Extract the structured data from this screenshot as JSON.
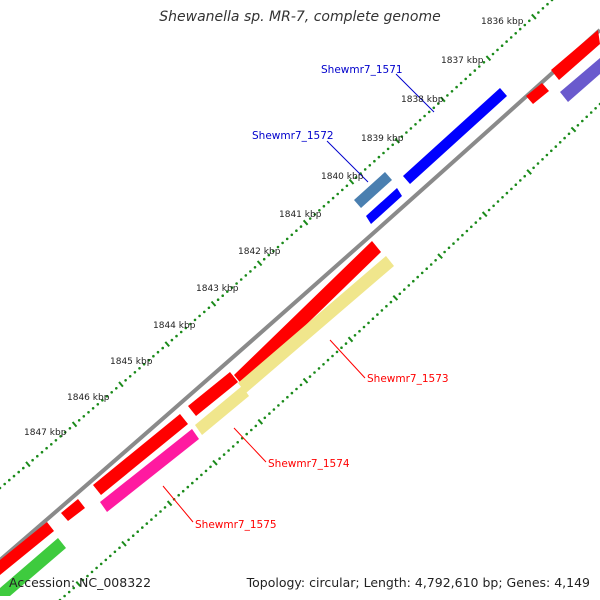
{
  "title": "Shewanella sp. MR-7, complete genome",
  "footer": {
    "accession": "Accession: NC_008322",
    "summary": "Topology: circular; Length: 4,792,610 bp; Genes: 4,149"
  },
  "colors": {
    "backbone": "#8a8a8a",
    "tick": "#1a8a1a",
    "tick_label": "#222222",
    "forward_gene": "#0000ff",
    "forward_gene_alt": "#4a7fb0",
    "reverse_gene": "#ff0000",
    "reverse_gene_alt_magenta": "#ff1aa0",
    "reverse_gene_alt_khaki": "#f0e68c",
    "reverse_gene_alt_green": "#3ecb3e",
    "reverse_gene_alt_slate": "#6a5acd",
    "forward_label": "#0000cc",
    "reverse_label": "#ff0000"
  },
  "ticks": [
    "1836 kbp",
    "1837 kbp",
    "1838 kbp",
    "1839 kbp",
    "1840 kbp",
    "1841 kbp",
    "1842 kbp",
    "1843 kbp",
    "1844 kbp",
    "1845 kbp",
    "1846 kbp",
    "1847 kbp"
  ],
  "gene_labels": {
    "g1571": "Shewmr7_1571",
    "g1572": "Shewmr7_1572",
    "g1573": "Shewmr7_1573",
    "g1574": "Shewmr7_1574",
    "g1575": "Shewmr7_1575"
  }
}
